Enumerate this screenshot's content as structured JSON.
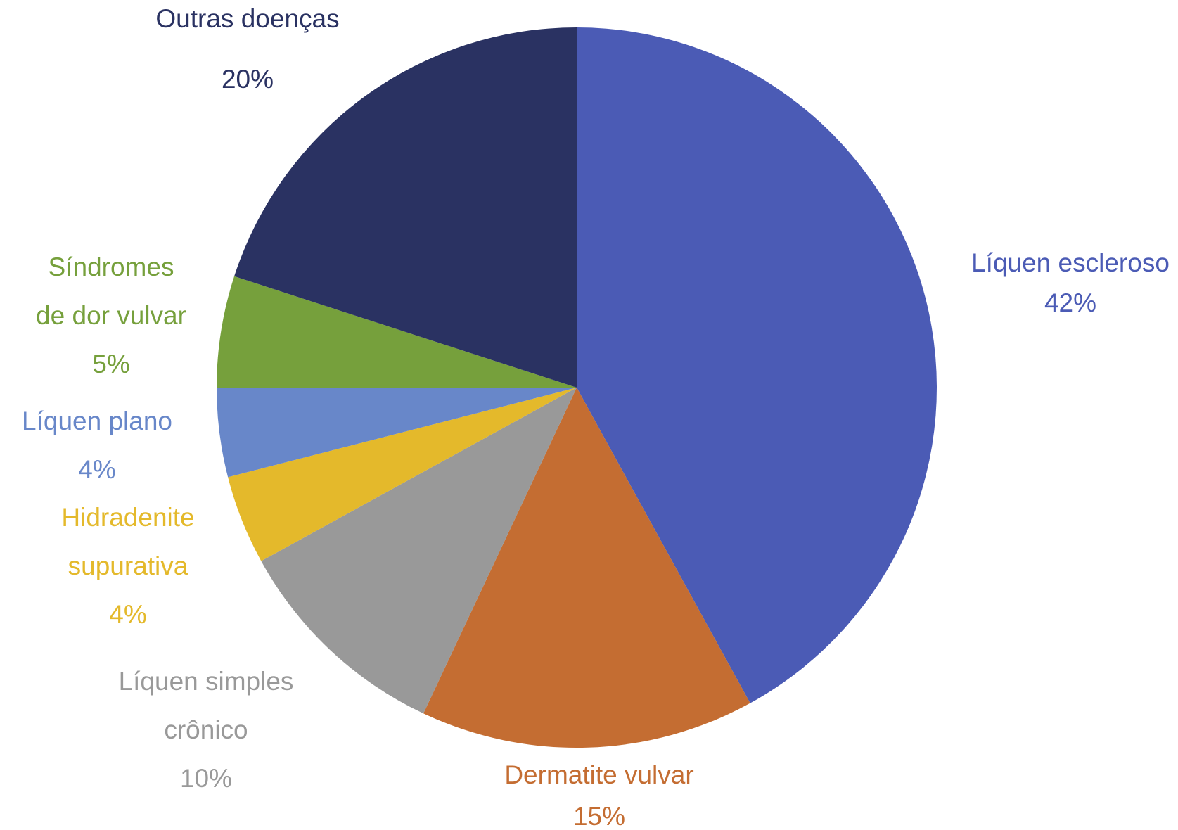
{
  "chart_data": {
    "type": "pie",
    "start_angle_deg": 0,
    "direction": "clockwise",
    "slices": [
      {
        "key": "liquen_escleroso",
        "label_lines": [
          "Líquen escleroso"
        ],
        "value": 42,
        "percent_label": "42%",
        "color": "#4b5bb5"
      },
      {
        "key": "dermatite_vulvar",
        "label_lines": [
          "Dermatite vulvar"
        ],
        "value": 15,
        "percent_label": "15%",
        "color": "#c46d32"
      },
      {
        "key": "liquen_simples_cronico",
        "label_lines": [
          "Líquen simples",
          "crônico"
        ],
        "value": 10,
        "percent_label": "10%",
        "color": "#999999"
      },
      {
        "key": "hidradenite_supurativa",
        "label_lines": [
          "Hidradenite",
          "supurativa"
        ],
        "value": 4,
        "percent_label": "4%",
        "color": "#e4b92b"
      },
      {
        "key": "liquen_plano",
        "label_lines": [
          "Líquen plano"
        ],
        "value": 4,
        "percent_label": "4%",
        "color": "#6887c9"
      },
      {
        "key": "sindromes_de_dor_vulvar",
        "label_lines": [
          "Síndromes",
          "de dor vulvar"
        ],
        "value": 5,
        "percent_label": "5%",
        "color": "#76a03c"
      },
      {
        "key": "outras_doencas",
        "label_lines": [
          "Outras doenças"
        ],
        "value": 20,
        "percent_label": "20%",
        "color": "#2a3262"
      }
    ]
  }
}
